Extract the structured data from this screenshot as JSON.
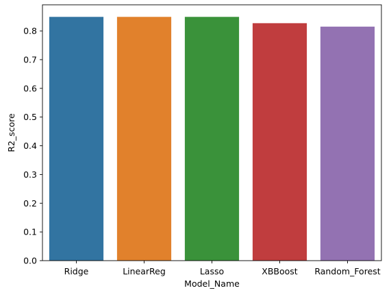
{
  "chart_data": {
    "type": "bar",
    "categories": [
      "Ridge",
      "LinearReg",
      "Lasso",
      "XBBoost",
      "Random_Forest"
    ],
    "values": [
      0.849,
      0.849,
      0.849,
      0.827,
      0.815
    ],
    "colors": [
      "#3274a1",
      "#e1812c",
      "#3a923a",
      "#c03d3e",
      "#9372b2"
    ],
    "xlabel": "Model_Name",
    "ylabel": "R2_score",
    "ylim": [
      0,
      0.891
    ],
    "yticks": [
      "0.0",
      "0.1",
      "0.2",
      "0.3",
      "0.4",
      "0.5",
      "0.6",
      "0.7",
      "0.8"
    ],
    "grid": false,
    "legend": "none"
  }
}
